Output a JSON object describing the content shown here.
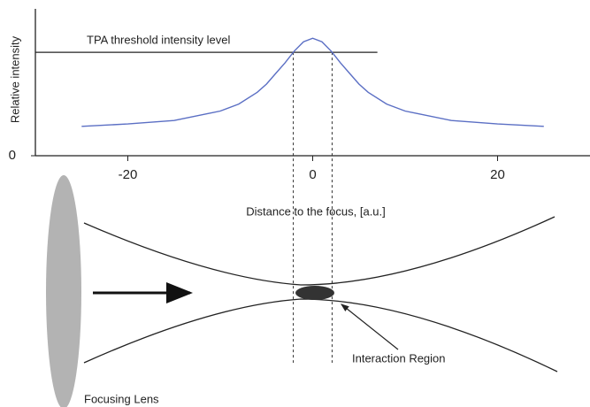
{
  "chart_data": {
    "type": "line",
    "x": [
      -25,
      -20,
      -15,
      -10,
      -8,
      -6,
      -5,
      -4,
      -3,
      -2,
      -1,
      0,
      1,
      2,
      3,
      4,
      5,
      6,
      8,
      10,
      15,
      20,
      25
    ],
    "values": [
      0.25,
      0.27,
      0.3,
      0.38,
      0.44,
      0.54,
      0.61,
      0.7,
      0.79,
      0.89,
      0.97,
      1.0,
      0.97,
      0.89,
      0.79,
      0.7,
      0.61,
      0.54,
      0.44,
      0.38,
      0.3,
      0.27,
      0.25
    ],
    "color": "#5b6fc4",
    "xlim": [
      -30,
      30
    ],
    "xticks": [
      -20,
      0,
      20
    ],
    "ylim": [
      0,
      1.25
    ],
    "yticks": [
      0
    ],
    "x_label": "Distance to the focus, [a.u.]",
    "y_label": "Relative intensity",
    "threshold": {
      "label": "TPA threshold intensity level",
      "value": 0.88,
      "x_range": [
        -30,
        7
      ]
    },
    "crossings": [
      -2.1,
      2.1
    ]
  },
  "diagram": {
    "lens_label": "Focusing Lens",
    "region_label": "Interaction Region"
  }
}
